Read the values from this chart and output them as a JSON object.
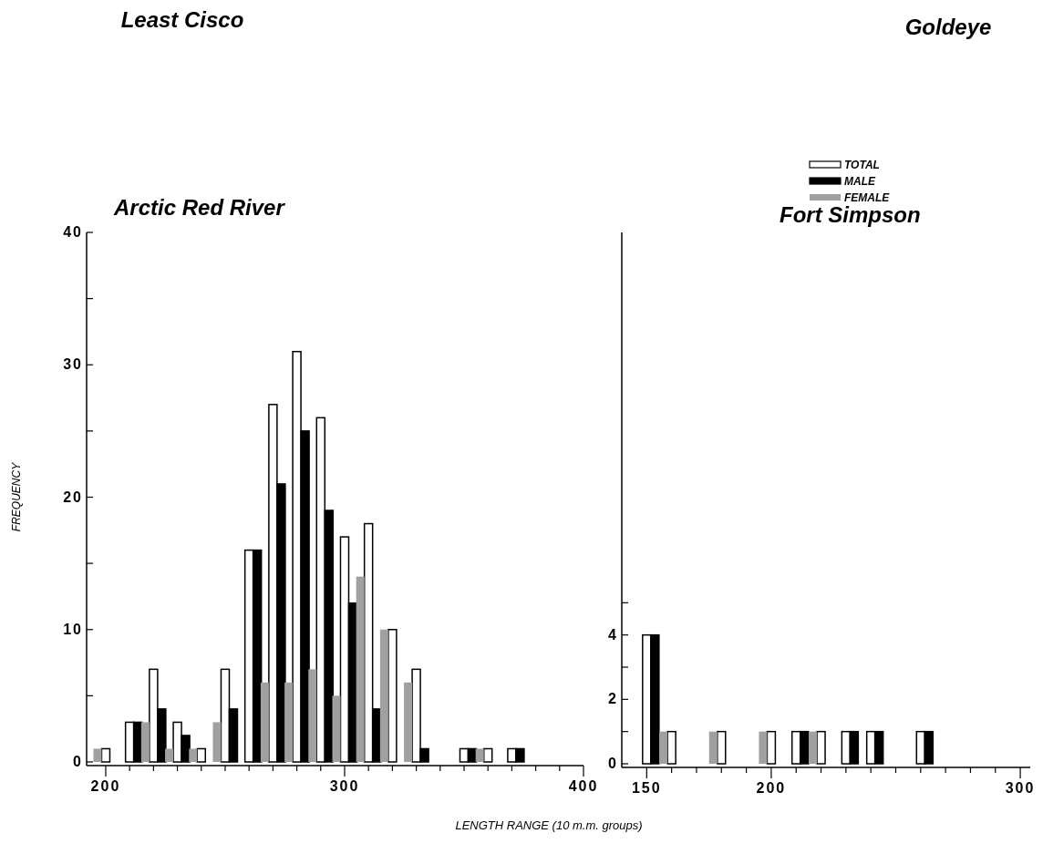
{
  "chart_data": [
    {
      "type": "bar",
      "title": "Least Cisco",
      "subtitle": "Arctic Red River",
      "ylabel": "FREQUENCY",
      "xlabel": "LENGTH RANGE (10 m.m. groups)",
      "x": [
        200,
        210,
        220,
        230,
        240,
        250,
        260,
        270,
        280,
        290,
        300,
        310,
        320,
        330,
        350,
        360,
        370
      ],
      "series": [
        {
          "color": "#ffffff",
          "values": [
            1,
            3,
            7,
            3,
            1,
            7,
            16,
            27,
            31,
            26,
            17,
            18,
            10,
            7,
            1,
            1,
            1
          ]
        },
        {
          "color": "#000000",
          "values": [
            0,
            3,
            4,
            2,
            0,
            4,
            16,
            21,
            25,
            19,
            12,
            4,
            0,
            1,
            1,
            0,
            1
          ]
        },
        {
          "color": "#a0a0a0",
          "values": [
            1,
            0,
            3,
            1,
            1,
            3,
            0,
            6,
            6,
            7,
            5,
            14,
            10,
            6,
            0,
            1,
            0
          ]
        }
      ],
      "xlim": [
        192,
        400
      ],
      "xticks": [
        200,
        {
          "value": 210,
          "label": null
        },
        {
          "value": 220,
          "label": null
        },
        {
          "value": 230,
          "label": null
        },
        {
          "value": 240,
          "label": null
        },
        {
          "value": 250,
          "label": null
        },
        {
          "value": 260,
          "label": null
        },
        {
          "value": 270,
          "label": null
        },
        {
          "value": 280,
          "label": null
        },
        {
          "value": 290,
          "label": null
        },
        300,
        {
          "value": 310,
          "label": null
        },
        {
          "value": 320,
          "label": null
        },
        {
          "value": 330,
          "label": null
        },
        {
          "value": 340,
          "label": null
        },
        {
          "value": 350,
          "label": null
        },
        {
          "value": 360,
          "label": null
        },
        {
          "value": 370,
          "label": null
        },
        {
          "value": 380,
          "label": null
        },
        {
          "value": 390,
          "label": null
        },
        400
      ],
      "ylim": [
        0,
        40
      ],
      "yticks": [
        0,
        {
          "value": 5,
          "label": null
        },
        10,
        {
          "value": 15,
          "label": null
        },
        20,
        {
          "value": 25,
          "label": null
        },
        30,
        {
          "value": 35,
          "label": null
        },
        40
      ],
      "grid": false,
      "legend": false
    },
    {
      "type": "bar",
      "title": "Goldeye",
      "subtitle": "Fort Simpson",
      "x": [
        150,
        160,
        180,
        200,
        210,
        220,
        230,
        240,
        260
      ],
      "series": [
        {
          "name": "TOTAL",
          "color": "#ffffff",
          "values": [
            4,
            1,
            1,
            1,
            1,
            1,
            1,
            1,
            1
          ]
        },
        {
          "name": "MALE",
          "color": "#000000",
          "values": [
            4,
            0,
            0,
            0,
            1,
            0,
            1,
            1,
            1
          ]
        },
        {
          "name": "FEMALE",
          "color": "#a0a0a0",
          "values": [
            0,
            1,
            1,
            1,
            0,
            1,
            0,
            0,
            0
          ]
        }
      ],
      "xlim": [
        140,
        304
      ],
      "xticks": [
        150,
        {
          "value": 160,
          "label": null
        },
        {
          "value": 170,
          "label": null
        },
        {
          "value": 180,
          "label": null
        },
        {
          "value": 190,
          "label": null
        },
        200,
        {
          "value": 210,
          "label": null
        },
        {
          "value": 220,
          "label": null
        },
        {
          "value": 230,
          "label": null
        },
        {
          "value": 240,
          "label": null
        },
        {
          "value": 250,
          "label": null
        },
        {
          "value": 260,
          "label": null
        },
        {
          "value": 270,
          "label": null
        },
        {
          "value": 280,
          "label": null
        },
        {
          "value": 290,
          "label": null
        },
        300
      ],
      "ylim": [
        0,
        16.5
      ],
      "yticks": [
        0,
        {
          "value": 1,
          "label": null
        },
        2,
        {
          "value": 3,
          "label": null
        },
        4,
        {
          "value": 5,
          "label": null
        }
      ],
      "grid": false,
      "legend": "top right"
    }
  ]
}
